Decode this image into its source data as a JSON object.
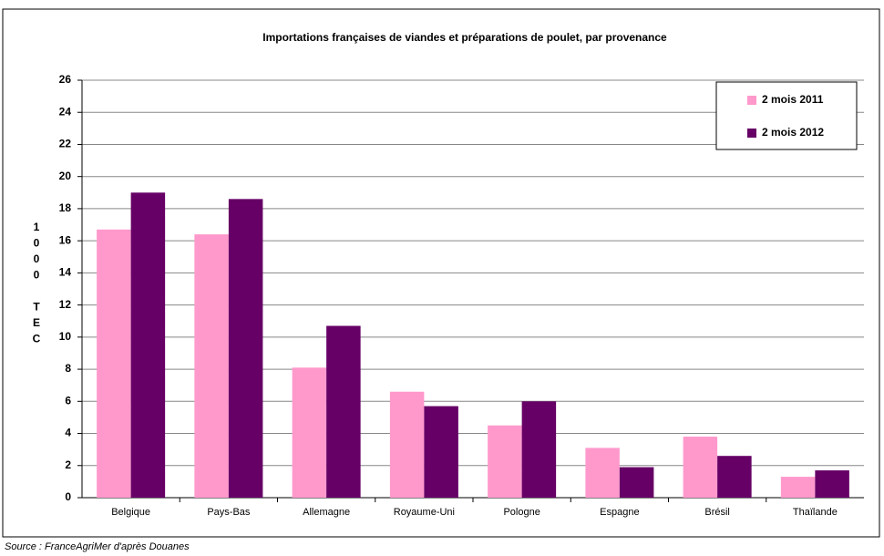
{
  "chart_data": {
    "type": "bar",
    "title": "Importations françaises de viandes et préparations de poulet, par provenance",
    "y_label": "1000 TEC",
    "source": "Source : FranceAgriMer d'après Douanes",
    "categories": [
      "Belgique",
      "Pays-Bas",
      "Allemagne",
      "Royaume-Uni",
      "Pologne",
      "Espagne",
      "Brésil",
      "Thaïlande"
    ],
    "series": [
      {
        "name": "2 mois 2011",
        "color": "#ff99cc",
        "values": [
          16.7,
          16.4,
          8.1,
          6.6,
          4.5,
          3.1,
          3.8,
          1.3
        ]
      },
      {
        "name": "2 mois 2012",
        "color": "#660066",
        "values": [
          19.0,
          18.6,
          10.7,
          5.7,
          6.0,
          1.9,
          2.6,
          1.7
        ]
      }
    ],
    "ylim": [
      0,
      26
    ],
    "yticks": [
      0,
      2,
      4,
      6,
      8,
      10,
      12,
      14,
      16,
      18,
      20,
      22,
      24,
      26
    ],
    "grid": true,
    "legend": "top-right"
  }
}
